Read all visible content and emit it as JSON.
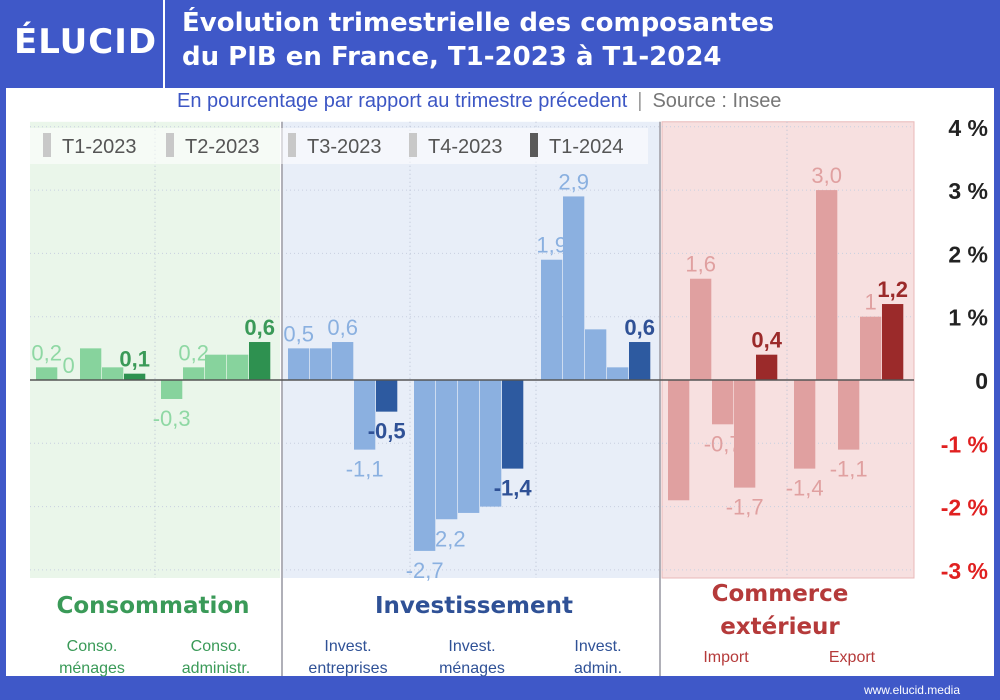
{
  "header": {
    "logo": "ÉLUCID",
    "title_line1": "Évolution trimestrielle des composantes",
    "title_line2": "du PIB en France, T1-2023 à T1-2024",
    "subtitle": "En pourcentage par rapport au trimestre précedent",
    "separator": "|",
    "source": "Source : Insee"
  },
  "footer": {
    "site": "www.elucid.media"
  },
  "groups": [
    {
      "title": "Consommation",
      "color_key": "green"
    },
    {
      "title": "Investissement",
      "color_key": "blue"
    },
    {
      "title": "Commerce extérieur",
      "color_key": "red"
    }
  ],
  "colors": {
    "green_bg": "#eaf6ea",
    "blue_bg": "#e8eef8",
    "red_bg": "#f7e0e0",
    "green": [
      "#87d39d",
      "#87d39d",
      "#87d39d",
      "#87d39d",
      "#2e9150"
    ],
    "blue": [
      "#8bb0e0",
      "#8bb0e0",
      "#8bb0e0",
      "#8bb0e0",
      "#2d5aa0"
    ],
    "red": [
      "#e0a0a0",
      "#e0a0a0",
      "#e0a0a0",
      "#e0a0a0",
      "#9b2a2a"
    ],
    "label_green": [
      "#8fd8a4",
      "#3a9a58"
    ],
    "label_blue": [
      "#8ab0e0",
      "#2f5196"
    ],
    "label_red": [
      "#e0a0a0",
      "#9b2a2a"
    ],
    "negative_tick": "#e02020"
  },
  "chart_data": {
    "type": "bar",
    "title": "Évolution trimestrielle des composantes du PIB en France, T1-2023 à T1-2024",
    "subtitle": "En pourcentage par rapport au trimestre précedent",
    "series_names": [
      "T1-2023",
      "T2-2023",
      "T3-2023",
      "T4-2023",
      "T1-2024"
    ],
    "categories": [
      {
        "group": "Consommation",
        "label": [
          "Conso.",
          "ménages"
        ],
        "values": [
          0.2,
          0.0,
          0.5,
          0.2,
          0.1
        ],
        "labels": [
          "0,2",
          "0",
          "",
          "",
          "0,1"
        ]
      },
      {
        "group": "Consommation",
        "label": [
          "Conso.",
          "administr."
        ],
        "values": [
          -0.3,
          0.2,
          0.4,
          0.4,
          0.6
        ],
        "labels": [
          "-0,3",
          "0,2",
          "",
          "",
          "0,6"
        ]
      },
      {
        "group": "Investissement",
        "label": [
          "Invest.",
          "entreprises"
        ],
        "values": [
          0.5,
          0.5,
          0.6,
          -1.1,
          -0.5
        ],
        "labels": [
          "0,5",
          "",
          "0,6",
          "-1,1",
          "-0,5"
        ]
      },
      {
        "group": "Investissement",
        "label": [
          "Invest.",
          "ménages"
        ],
        "values": [
          -2.7,
          -2.2,
          -2.1,
          -2.0,
          -1.4
        ],
        "labels": [
          "-2,7",
          "-2,2",
          "",
          "",
          "-1,4"
        ]
      },
      {
        "group": "Investissement",
        "label": [
          "Invest.",
          "admin."
        ],
        "values": [
          1.9,
          2.9,
          0.8,
          0.2,
          0.6
        ],
        "labels": [
          "1,9",
          "2,9",
          "",
          "",
          "0,6"
        ]
      },
      {
        "group": "Commerce extérieur",
        "label": [
          "Import"
        ],
        "values": [
          -1.9,
          1.6,
          -0.7,
          -1.7,
          0.4
        ],
        "labels": [
          "",
          "1,6",
          "-0,7",
          "-1,7",
          "0,4"
        ]
      },
      {
        "group": "Commerce extérieur",
        "label": [
          "Export"
        ],
        "values": [
          -1.4,
          3.0,
          -1.1,
          1.0,
          1.2
        ],
        "labels": [
          "-1,4",
          "3,0",
          "-1,1",
          "1",
          "1,2"
        ]
      }
    ],
    "ylim": [
      -3,
      4
    ],
    "yticks": [
      4,
      3,
      2,
      1,
      0,
      -1,
      -2,
      -3
    ],
    "ytick_labels": [
      "4 %",
      "3 %",
      "2 %",
      "1 %",
      "0",
      "-1 %",
      "-2 %",
      "-3 %"
    ]
  }
}
